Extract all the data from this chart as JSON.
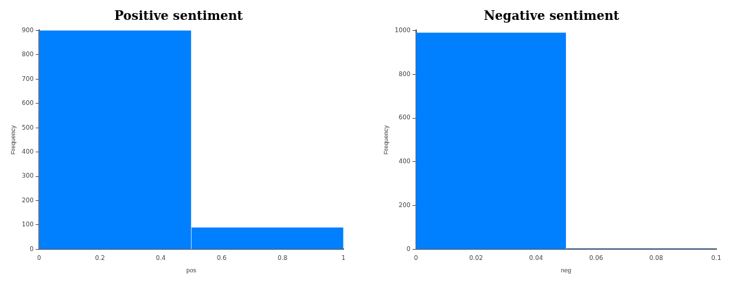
{
  "chart_data": [
    {
      "type": "histogram",
      "title": "Positive sentiment",
      "xlabel": "pos",
      "ylabel": "Frequency",
      "bins": [
        0,
        0.5,
        1
      ],
      "values": [
        900,
        90
      ],
      "color": "#007fff",
      "xlim": [
        0,
        1
      ],
      "xticks": [
        0,
        0.2,
        0.4,
        0.6,
        0.8,
        1
      ],
      "ylim": [
        0,
        900
      ],
      "yticks": [
        0,
        100,
        200,
        300,
        400,
        500,
        600,
        700,
        800,
        900
      ],
      "grid": false,
      "legend": false
    },
    {
      "type": "histogram",
      "title": "Negative sentiment",
      "xlabel": "neg",
      "ylabel": "Frequency",
      "bins": [
        0,
        0.05,
        0.1
      ],
      "values": [
        990,
        3
      ],
      "color": "#007fff",
      "xlim": [
        0,
        0.1
      ],
      "xticks": [
        0,
        0.02,
        0.04,
        0.06,
        0.08,
        0.1
      ],
      "ylim": [
        0,
        1000
      ],
      "yticks": [
        0,
        200,
        400,
        600,
        800,
        1000
      ],
      "grid": false,
      "legend": false
    }
  ]
}
